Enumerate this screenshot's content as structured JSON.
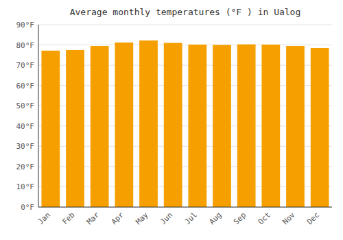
{
  "chart_data": {
    "type": "bar",
    "title": "Average monthly temperatures (°F ) in Ualog",
    "categories": [
      "Jan",
      "Feb",
      "Mar",
      "Apr",
      "May",
      "Jun",
      "Jul",
      "Aug",
      "Sep",
      "Oct",
      "Nov",
      "Dec"
    ],
    "values": [
      77.2,
      77.5,
      79.5,
      81.2,
      82.2,
      81.0,
      80.2,
      80.0,
      80.3,
      80.2,
      79.5,
      78.5
    ],
    "color": "#F5A000",
    "ylim": [
      0,
      90
    ],
    "yticks": [
      {
        "value": 0,
        "label": "0°F"
      },
      {
        "value": 10,
        "label": "10°F"
      },
      {
        "value": 20,
        "label": "20°F"
      },
      {
        "value": 30,
        "label": "30°F"
      },
      {
        "value": 40,
        "label": "40°F"
      },
      {
        "value": 50,
        "label": "50°F"
      },
      {
        "value": 60,
        "label": "60°F"
      },
      {
        "value": 70,
        "label": "70°F"
      },
      {
        "value": 80,
        "label": "80°F"
      },
      {
        "value": 90,
        "label": "90°F"
      }
    ],
    "grid": true
  }
}
